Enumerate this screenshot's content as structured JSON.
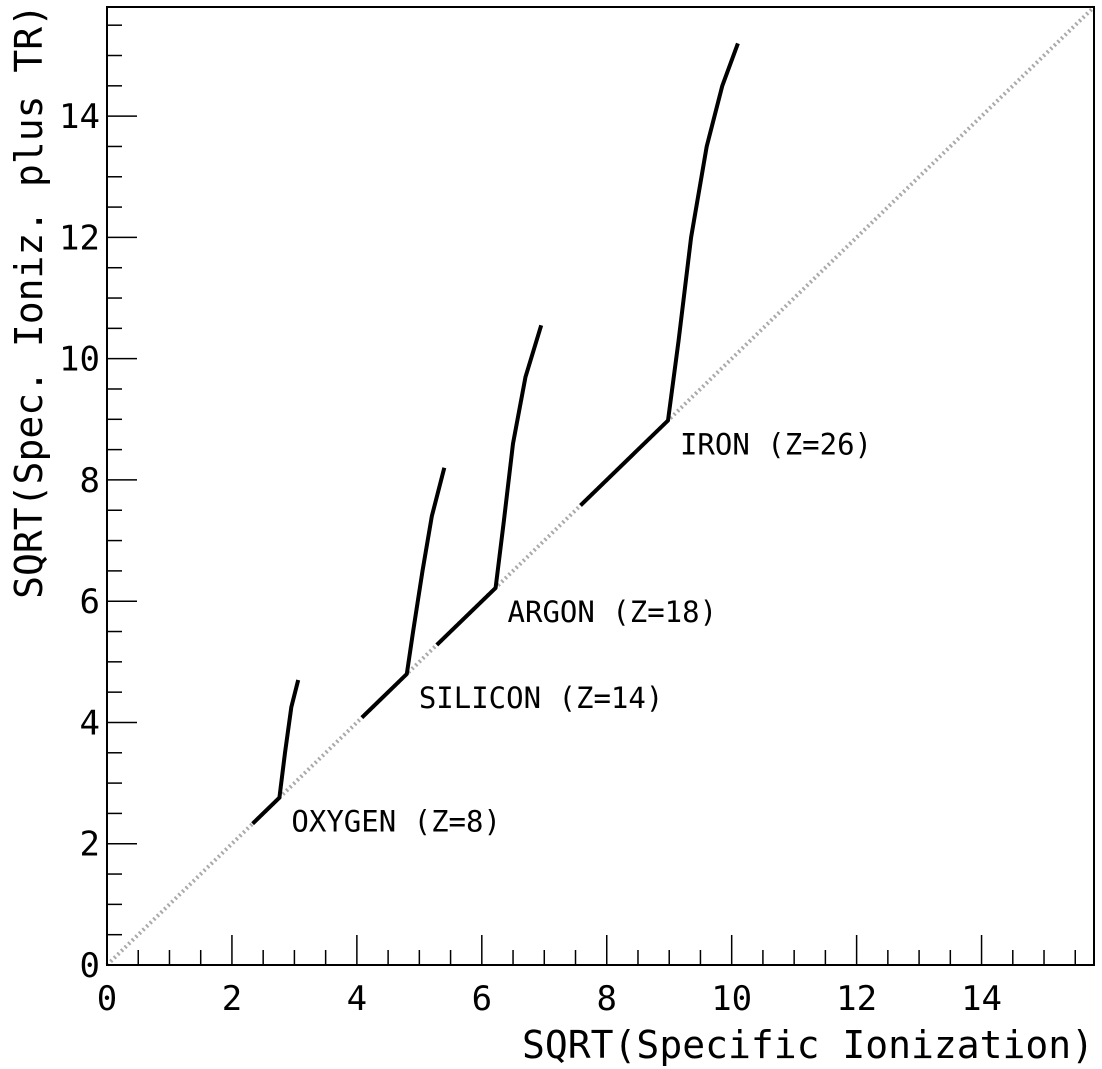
{
  "chart_data": {
    "type": "line",
    "title": "",
    "xlabel": "SQRT(Specific Ionization)",
    "ylabel": "SQRT(Spec. Ioniz. plus TR)",
    "xlim": [
      0,
      15.8
    ],
    "ylim": [
      0,
      15.8
    ],
    "grid": false,
    "x_ticks": [
      "0",
      "2",
      "4",
      "6",
      "8",
      "10",
      "12",
      "14"
    ],
    "y_ticks": [
      "0",
      "2",
      "4",
      "6",
      "8",
      "10",
      "12",
      "14"
    ],
    "reference_line": {
      "name": "",
      "style": "dotted",
      "color": "#aaaaaa",
      "points": [
        [
          0,
          0
        ],
        [
          15.8,
          15.8
        ]
      ]
    },
    "series": [
      {
        "label": "OXYGEN (Z=8)",
        "color": "#000000",
        "points": [
          [
            2.33,
            2.33
          ],
          [
            2.76,
            2.76
          ],
          [
            2.85,
            3.5
          ],
          [
            2.95,
            4.25
          ],
          [
            3.06,
            4.7
          ]
        ]
      },
      {
        "label": "SILICON (Z=14)",
        "color": "#000000",
        "points": [
          [
            4.08,
            4.08
          ],
          [
            4.8,
            4.8
          ],
          [
            4.9,
            5.5
          ],
          [
            5.05,
            6.5
          ],
          [
            5.2,
            7.4
          ],
          [
            5.4,
            8.2
          ]
        ]
      },
      {
        "label": "ARGON (Z=18)",
        "color": "#000000",
        "points": [
          [
            5.28,
            5.28
          ],
          [
            6.22,
            6.22
          ],
          [
            6.35,
            7.3
          ],
          [
            6.5,
            8.6
          ],
          [
            6.7,
            9.7
          ],
          [
            6.95,
            10.55
          ]
        ]
      },
      {
        "label": "IRON (Z=26)",
        "color": "#000000",
        "points": [
          [
            7.58,
            7.58
          ],
          [
            8.98,
            8.98
          ],
          [
            9.15,
            10.3
          ],
          [
            9.35,
            12.0
          ],
          [
            9.6,
            13.5
          ],
          [
            9.85,
            14.5
          ],
          [
            10.1,
            15.2
          ]
        ]
      }
    ]
  }
}
